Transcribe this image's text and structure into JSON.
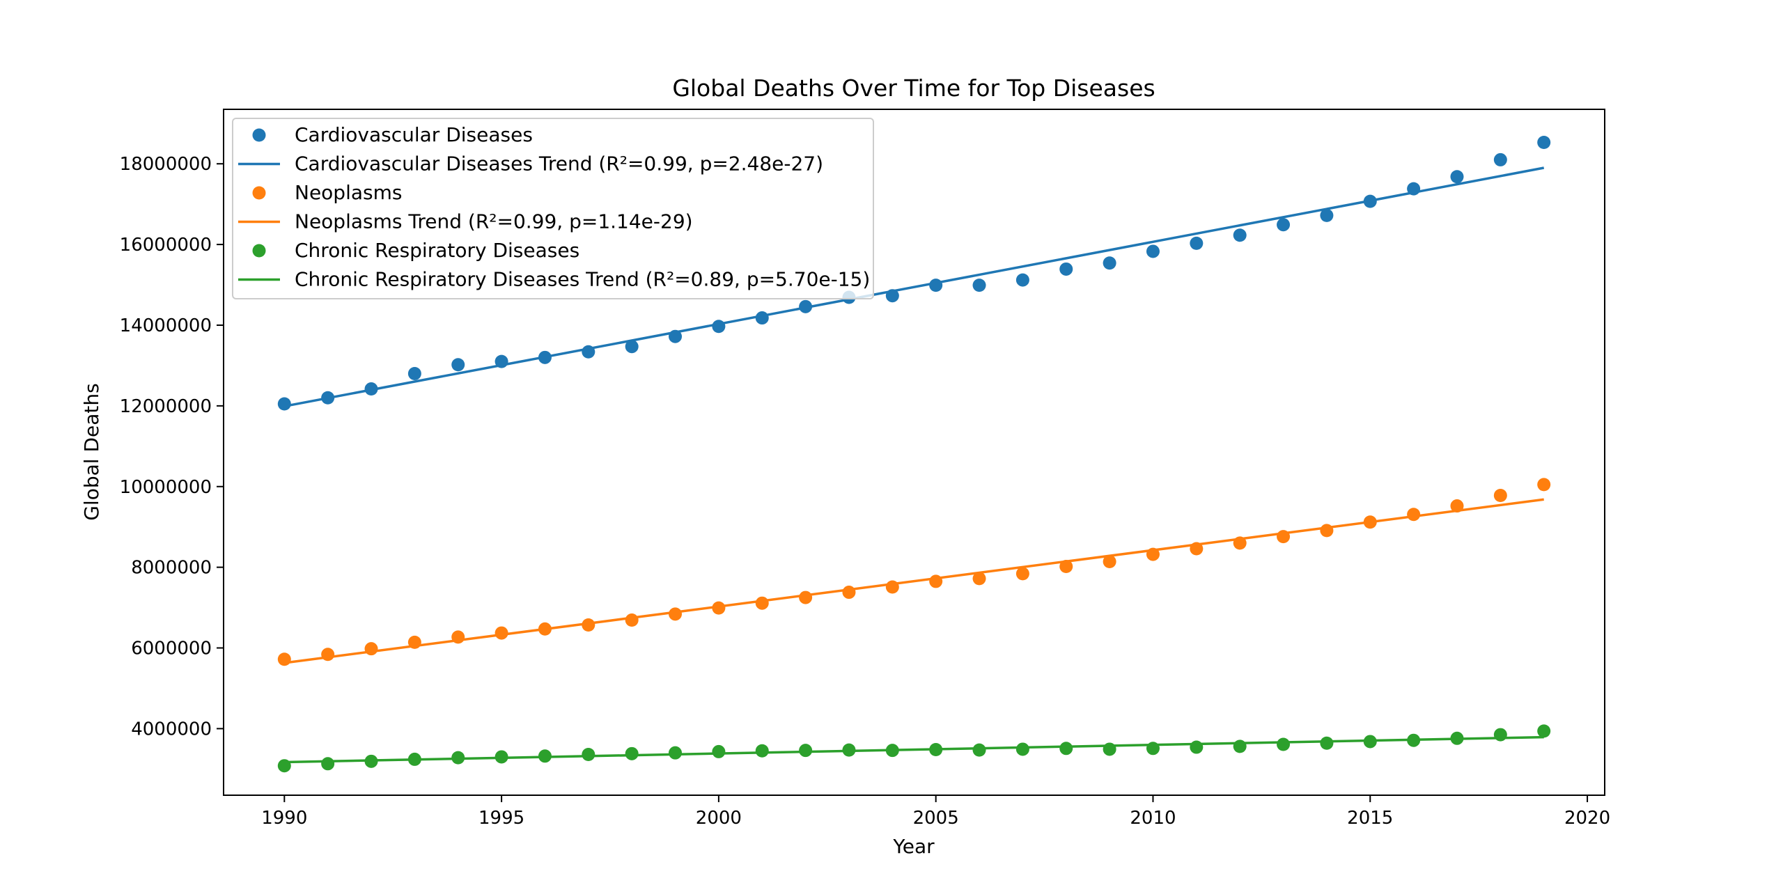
{
  "chart_data": {
    "type": "scatter",
    "title": "Global Deaths Over Time for Top Diseases",
    "xlabel": "Year",
    "ylabel": "Global Deaths",
    "xlim": [
      1988.6,
      2020.4
    ],
    "ylim": [
      2350000,
      19350000
    ],
    "x_ticks": [
      1990,
      1995,
      2000,
      2005,
      2010,
      2015,
      2020
    ],
    "y_ticks": [
      4000000,
      6000000,
      8000000,
      10000000,
      12000000,
      14000000,
      16000000,
      18000000
    ],
    "x_tick_labels": [
      "1990",
      "1995",
      "2000",
      "2005",
      "2010",
      "2015",
      "2020"
    ],
    "y_tick_labels": [
      "4000000",
      "6000000",
      "8000000",
      "10000000",
      "12000000",
      "14000000",
      "16000000",
      "18000000"
    ],
    "grid": false,
    "legend_position": "upper-left",
    "years": [
      1990,
      1991,
      1992,
      1993,
      1994,
      1995,
      1996,
      1997,
      1998,
      1999,
      2000,
      2001,
      2002,
      2003,
      2004,
      2005,
      2006,
      2007,
      2008,
      2009,
      2010,
      2011,
      2012,
      2013,
      2014,
      2015,
      2016,
      2017,
      2018,
      2019
    ],
    "series": [
      {
        "name": "Cardiovascular Diseases",
        "color": "#1f77b4",
        "values": [
          12050000,
          12200000,
          12420000,
          12800000,
          13020000,
          13100000,
          13200000,
          13340000,
          13470000,
          13720000,
          13970000,
          14180000,
          14460000,
          14690000,
          14730000,
          14990000,
          14990000,
          15120000,
          15390000,
          15540000,
          15830000,
          16030000,
          16230000,
          16490000,
          16720000,
          17070000,
          17380000,
          17680000,
          18100000,
          18530000
        ]
      },
      {
        "name": "Neoplasms",
        "color": "#ff7f0e",
        "values": [
          5720000,
          5840000,
          5980000,
          6140000,
          6270000,
          6370000,
          6470000,
          6570000,
          6690000,
          6840000,
          6990000,
          7110000,
          7250000,
          7380000,
          7510000,
          7650000,
          7720000,
          7840000,
          8020000,
          8140000,
          8320000,
          8460000,
          8600000,
          8760000,
          8910000,
          9120000,
          9310000,
          9520000,
          9780000,
          10050000
        ]
      },
      {
        "name": "Chronic Respiratory Diseases",
        "color": "#2ca02c",
        "values": [
          3080000,
          3130000,
          3190000,
          3240000,
          3280000,
          3300000,
          3320000,
          3360000,
          3380000,
          3400000,
          3430000,
          3450000,
          3460000,
          3470000,
          3460000,
          3480000,
          3470000,
          3490000,
          3510000,
          3490000,
          3510000,
          3540000,
          3560000,
          3610000,
          3640000,
          3680000,
          3710000,
          3760000,
          3850000,
          3940000
        ]
      }
    ],
    "trends": [
      {
        "name": "Cardiovascular Diseases Trend (R²=0.99, p=2.48e-27)",
        "color": "#1f77b4",
        "start": [
          1990,
          11990000
        ],
        "end": [
          2019,
          17900000
        ]
      },
      {
        "name": "Neoplasms Trend (R²=0.99, p=1.14e-29)",
        "color": "#ff7f0e",
        "start": [
          1990,
          5630000
        ],
        "end": [
          2019,
          9680000
        ]
      },
      {
        "name": "Chronic Respiratory Diseases Trend (R²=0.89, p=5.70e-15)",
        "color": "#2ca02c",
        "start": [
          1990,
          3170000
        ],
        "end": [
          2019,
          3790000
        ]
      }
    ]
  }
}
